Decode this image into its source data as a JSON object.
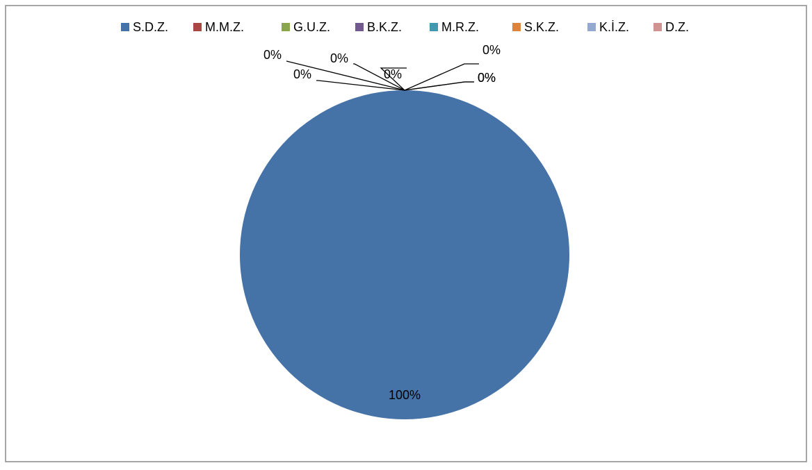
{
  "chart_data": {
    "type": "pie",
    "categories": [
      "S.D.Z.",
      "M.M.Z.",
      "G.U.Z.",
      "B.K.Z.",
      "M.R.Z.",
      "S.K.Z.",
      "K.İ.Z.",
      "D.Z."
    ],
    "values": [
      100,
      0,
      0,
      0,
      0,
      0,
      0,
      0
    ],
    "value_labels": [
      "100%",
      "0%",
      "0%",
      "0%",
      "0%",
      "0%",
      "0%",
      "0%"
    ],
    "colors": [
      "#4572a7",
      "#aa4643",
      "#89a54e",
      "#71588f",
      "#4198af",
      "#db843d",
      "#93a9cf",
      "#d19392"
    ],
    "legend": "top"
  }
}
